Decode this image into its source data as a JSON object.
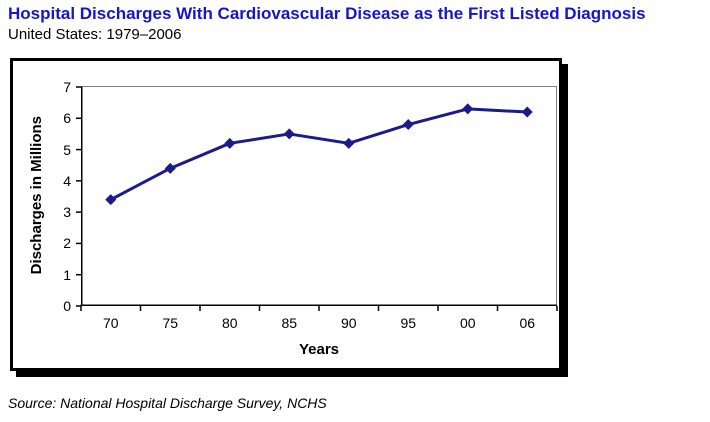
{
  "page": {
    "title": "Hospital Discharges With Cardiovascular Disease as the First Listed Diagnosis",
    "subtitle": "United States: 1979–2006",
    "source": "Source: National Hospital Discharge Survey, NCHS"
  },
  "colors": {
    "title_blue": "#1515cc",
    "line_navy": "#1b1b8c",
    "plot_border_gray": "#808080",
    "axis_black": "#000000"
  },
  "chart_data": {
    "type": "line",
    "title": "",
    "categories": [
      "70",
      "75",
      "80",
      "85",
      "90",
      "95",
      "00",
      "06"
    ],
    "series": [
      {
        "name": "Discharges in Millions",
        "values": [
          3.4,
          4.4,
          5.2,
          5.5,
          5.2,
          5.8,
          6.3,
          6.2
        ]
      }
    ],
    "xlabel": "Years",
    "ylabel": "Discharges in Millions",
    "ylim": [
      0,
      7
    ],
    "yticks": [
      0,
      1,
      2,
      3,
      4,
      5,
      6,
      7
    ],
    "marker": "diamond",
    "grid": false,
    "legend_position": "none"
  }
}
